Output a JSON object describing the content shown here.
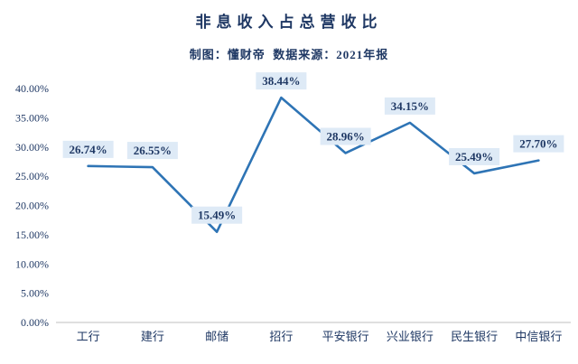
{
  "title": "非息收入占总营收比",
  "subtitle": "制图：懂财帝  数据来源：2021年报",
  "colors": {
    "line": "#2E74B5",
    "label_bg": "#DEEAF6",
    "text": "#1F3864",
    "axis_line": "#BFBFBF"
  },
  "chart_data": {
    "type": "line",
    "title": "非息收入占总营收比",
    "subtitle": "制图：懂财帝  数据来源：2021年报",
    "categories": [
      "工行",
      "建行",
      "邮储",
      "招行",
      "平安银行",
      "兴业银行",
      "民生银行",
      "中信银行"
    ],
    "values": [
      26.74,
      26.55,
      15.49,
      38.44,
      28.96,
      34.15,
      25.49,
      27.7
    ],
    "data_labels": [
      "26.74%",
      "26.55%",
      "15.49%",
      "38.44%",
      "28.96%",
      "34.15%",
      "25.49%",
      "27.70%"
    ],
    "xlabel": "",
    "ylabel": "",
    "ylim": [
      0,
      40
    ],
    "ytick_step": 5,
    "ytick_labels": [
      "0.00%",
      "5.00%",
      "10.00%",
      "15.00%",
      "20.00%",
      "25.00%",
      "30.00%",
      "35.00%",
      "40.00%"
    ],
    "grid": false,
    "legend": false,
    "legend_position": "none"
  }
}
